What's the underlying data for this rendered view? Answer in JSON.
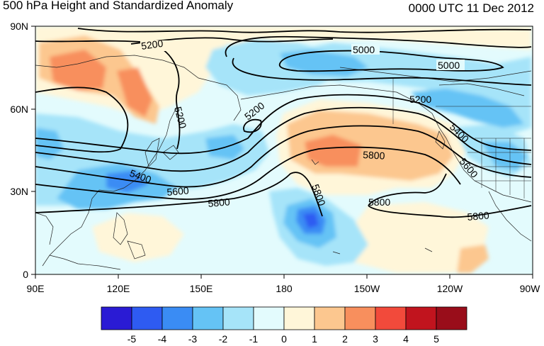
{
  "header": {
    "title": "500 hPa Height and Standardized Anomaly",
    "timestamp": "0000 UTC 11 Dec 2012"
  },
  "axes": {
    "lat_labels": [
      "90N",
      "60N",
      "30N",
      "0"
    ],
    "lon_labels": [
      "90E",
      "120E",
      "150E",
      "180",
      "150W",
      "120W",
      "90W"
    ]
  },
  "contour_labels": [
    "5200",
    "5000",
    "5000",
    "5200",
    "5200",
    "5200",
    "5400",
    "5400",
    "5600",
    "5600",
    "5800",
    "5800",
    "5800",
    "5800",
    "5800"
  ],
  "colorbar": {
    "labels": [
      "-5",
      "-4",
      "-3",
      "-2",
      "-1",
      "0",
      "1",
      "2",
      "3",
      "4",
      "5"
    ],
    "colors": [
      "#2a1bd4",
      "#2e5bf2",
      "#3a8cf4",
      "#65c3f5",
      "#a6e4f9",
      "#e3fbfd",
      "#fff6d9",
      "#fcc78f",
      "#f88f5d",
      "#f24a3b",
      "#c1141e",
      "#990d1a"
    ]
  }
}
